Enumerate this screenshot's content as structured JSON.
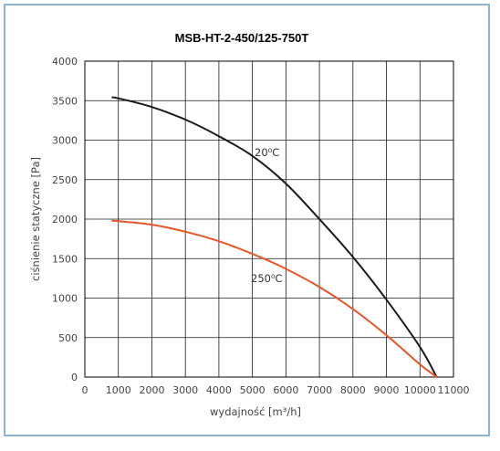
{
  "chart_data": {
    "type": "line",
    "title": "MSB-HT-2-450/125-750T",
    "xlabel": "wydajność [m³/h]",
    "ylabel": "ciśnienie statyczne [Pa]",
    "xlim": [
      0,
      11000
    ],
    "ylim": [
      0,
      4000
    ],
    "xticks": [
      "0",
      "1000",
      "2000",
      "3000",
      "4000",
      "5000",
      "6000",
      "7000",
      "8000",
      "9000",
      "10000",
      "11000"
    ],
    "yticks": [
      "0",
      "500",
      "1000",
      "1500",
      "2000",
      "2500",
      "3000",
      "3500",
      "4000"
    ],
    "grid": true,
    "series": [
      {
        "name": "20⁰C",
        "color": "#1a1a1a",
        "x": [
          800,
          1000,
          2000,
          3000,
          4000,
          5000,
          6000,
          7000,
          8000,
          9000,
          10000,
          10500
        ],
        "y": [
          3540,
          3530,
          3420,
          3260,
          3050,
          2800,
          2450,
          2000,
          1520,
          980,
          380,
          0
        ]
      },
      {
        "name": "250⁰C",
        "color": "#e8562a",
        "x": [
          800,
          1000,
          2000,
          3000,
          4000,
          5000,
          6000,
          7000,
          8000,
          9000,
          10000,
          10500
        ],
        "y": [
          1980,
          1975,
          1930,
          1840,
          1720,
          1560,
          1370,
          1140,
          860,
          530,
          160,
          0
        ]
      }
    ]
  }
}
